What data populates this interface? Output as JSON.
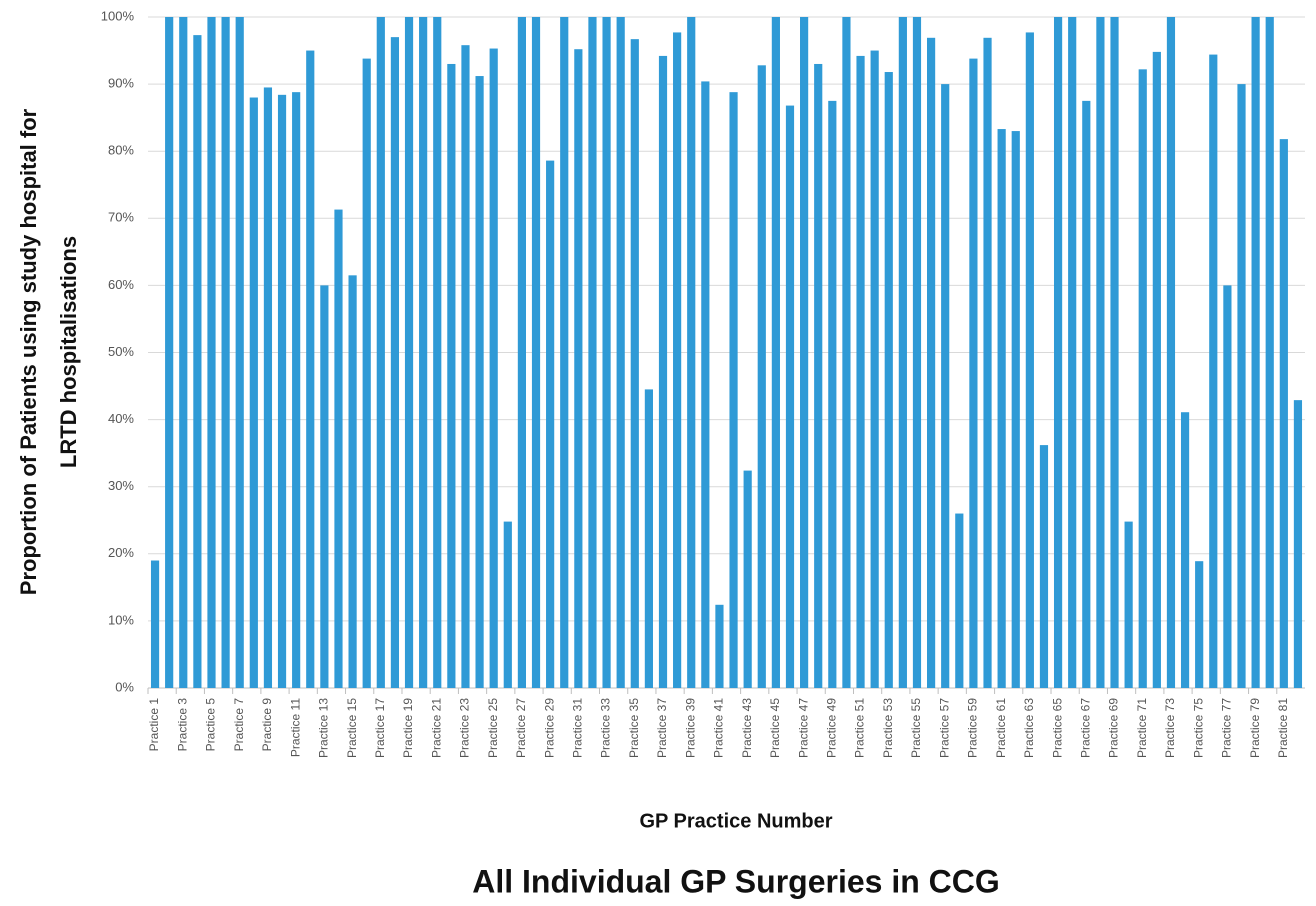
{
  "chart_data": {
    "type": "bar",
    "title": "All Individual GP Surgeries in CCG",
    "xlabel": "GP Practice Number",
    "ylabel_lines": [
      "Proportion of Patients using study hospital for",
      "LRTD hospitalisations"
    ],
    "categories": [
      "Practice 1",
      null,
      "Practice 3",
      null,
      "Practice 5",
      null,
      "Practice 7",
      null,
      "Practice 9",
      null,
      "Practice 11",
      null,
      "Practice 13",
      null,
      "Practice 15",
      null,
      "Practice 17",
      null,
      "Practice 19",
      null,
      "Practice 21",
      null,
      "Practice 23",
      null,
      "Practice 25",
      null,
      "Practice 27",
      null,
      "Practice 29",
      null,
      "Practice 31",
      null,
      "Practice 33",
      null,
      "Practice 35",
      null,
      "Practice 37",
      null,
      "Practice 39",
      null,
      "Practice 41",
      null,
      "Practice 43",
      null,
      "Practice 45",
      null,
      "Practice 47",
      null,
      "Practice 49",
      null,
      "Practice 51",
      null,
      "Practice 53",
      null,
      "Practice 55",
      null,
      "Practice 57",
      null,
      "Practice 59",
      null,
      "Practice 61",
      null,
      "Practice 63",
      null,
      "Practice 65",
      null,
      "Practice 67",
      null,
      "Practice 69",
      null,
      "Practice 71",
      null,
      "Practice 73",
      null,
      "Practice 75",
      null,
      "Practice 77",
      null,
      "Practice 79",
      null,
      "Practice 81",
      null
    ],
    "values": [
      19,
      100,
      100,
      97.3,
      100,
      100,
      100,
      88,
      89.5,
      88.4,
      88.8,
      95,
      60,
      71.3,
      61.5,
      93.8,
      100,
      97,
      100,
      100,
      100,
      93,
      95.8,
      91.2,
      95.3,
      24.8,
      100,
      100,
      78.6,
      100,
      95.2,
      100,
      100,
      100,
      96.7,
      44.5,
      94.2,
      97.7,
      100,
      90.4,
      12.4,
      88.8,
      32.4,
      92.8,
      100,
      86.8,
      100,
      93,
      87.5,
      100,
      94.2,
      95,
      91.8,
      100,
      100,
      96.9,
      90,
      26,
      93.8,
      96.9,
      83.3,
      83,
      97.7,
      36.2,
      100,
      100,
      87.5,
      100,
      100,
      24.8,
      92.2,
      94.8,
      100,
      41.1,
      18.9,
      94.4,
      60,
      90,
      100,
      100,
      81.8,
      42.9
    ],
    "color": "#2f9ad6",
    "ylim": [
      0,
      100
    ],
    "yticks": [
      {
        "value": 0,
        "label": "0%"
      },
      {
        "value": 10,
        "label": "10%"
      },
      {
        "value": 20,
        "label": "20%"
      },
      {
        "value": 30,
        "label": "30%"
      },
      {
        "value": 40,
        "label": "40%"
      },
      {
        "value": 50,
        "label": "50%"
      },
      {
        "value": 60,
        "label": "60%"
      },
      {
        "value": 70,
        "label": "70%"
      },
      {
        "value": 80,
        "label": "80%"
      },
      {
        "value": 90,
        "label": "90%"
      },
      {
        "value": 100,
        "label": "100%"
      }
    ],
    "grid": true
  }
}
